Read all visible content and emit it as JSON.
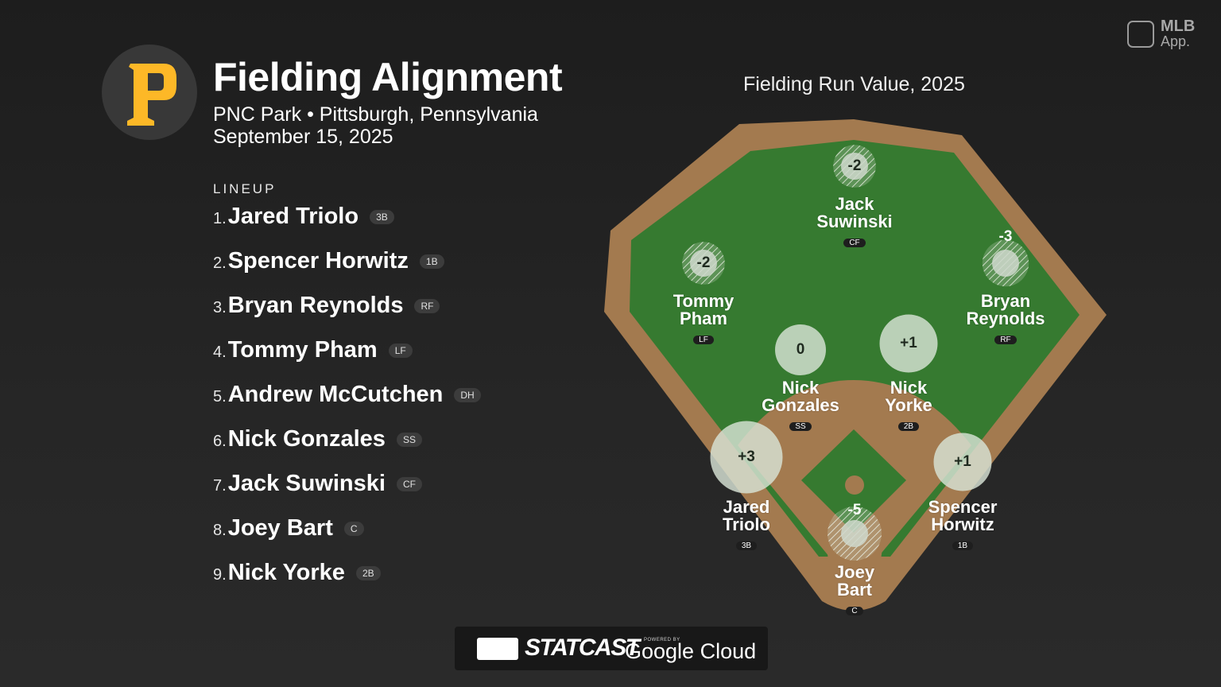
{
  "header": {
    "title": "Fielding Alignment",
    "venue_line": "PNC Park • Pittsburgh, Pennsylvania",
    "date_line": "September 15, 2025"
  },
  "team_logo": {
    "icon": "pirates-p-logo",
    "letter": "P",
    "color": "#FDB827"
  },
  "branding": {
    "app_title": "MLB",
    "app_sub": "App.",
    "footer_main": "STATCAST",
    "footer_powered": "POWERED BY",
    "footer_partner": "Google Cloud"
  },
  "lineup": {
    "label": "LINEUP",
    "players": [
      {
        "num": "1.",
        "name": "Jared Triolo",
        "pos": "3B"
      },
      {
        "num": "2.",
        "name": "Spencer Horwitz",
        "pos": "1B"
      },
      {
        "num": "3.",
        "name": "Bryan Reynolds",
        "pos": "RF"
      },
      {
        "num": "4.",
        "name": "Tommy Pham",
        "pos": "LF"
      },
      {
        "num": "5.",
        "name": "Andrew McCutchen",
        "pos": "DH"
      },
      {
        "num": "6.",
        "name": "Nick Gonzales",
        "pos": "SS"
      },
      {
        "num": "7.",
        "name": "Jack Suwinski",
        "pos": "CF"
      },
      {
        "num": "8.",
        "name": "Joey Bart",
        "pos": "C"
      },
      {
        "num": "9.",
        "name": "Nick Yorke",
        "pos": "2B"
      }
    ]
  },
  "field": {
    "title": "Fielding Run Value, 2025",
    "colors": {
      "grass": "#367a30",
      "dirt": "#a37a4f",
      "positive_marker": "#d8e3d5",
      "negative_marker": "#cfd8cc"
    },
    "fielders": [
      {
        "first": "Jack",
        "last": "Suwinski",
        "pos": "CF",
        "value": "-2"
      },
      {
        "first": "Tommy",
        "last": "Pham",
        "pos": "LF",
        "value": "-2"
      },
      {
        "first": "Bryan",
        "last": "Reynolds",
        "pos": "RF",
        "value": "-3"
      },
      {
        "first": "Nick",
        "last": "Gonzales",
        "pos": "SS",
        "value": "0"
      },
      {
        "first": "Nick",
        "last": "Yorke",
        "pos": "2B",
        "value": "+1"
      },
      {
        "first": "Jared",
        "last": "Triolo",
        "pos": "3B",
        "value": "+3"
      },
      {
        "first": "Spencer",
        "last": "Horwitz",
        "pos": "1B",
        "value": "+1"
      },
      {
        "first": "Joey",
        "last": "Bart",
        "pos": "C",
        "value": "-5"
      }
    ]
  }
}
